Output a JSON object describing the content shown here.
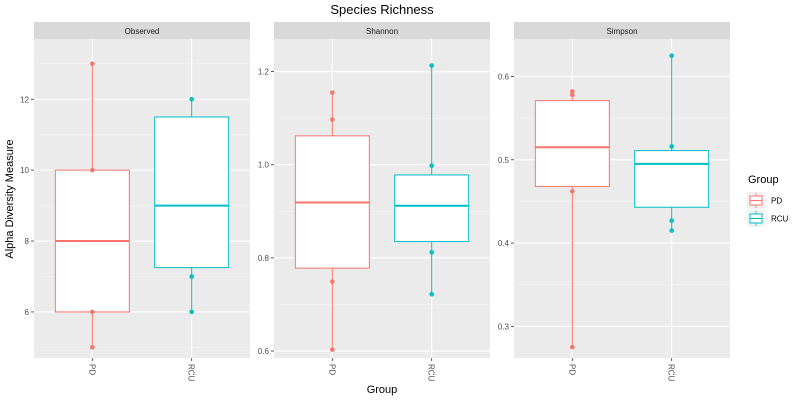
{
  "chart_data": {
    "type": "box",
    "title": "Species Richness",
    "xlabel": "Group",
    "ylabel": "Alpha Diversity Measure",
    "categories": [
      "PD",
      "RCU"
    ],
    "colors": {
      "PD": "#F8766D",
      "RCU": "#00BFC4"
    },
    "legend": {
      "title": "Group",
      "position": "right",
      "entries": [
        "PD",
        "RCU"
      ]
    },
    "grid": true,
    "panels": [
      {
        "name": "Observed",
        "ylim": [
          4.7,
          13.7
        ],
        "yticks": [
          6,
          8,
          10,
          12
        ],
        "groups": [
          {
            "name": "PD",
            "q1": 6,
            "median": 8,
            "q3": 10,
            "whisker_low": 5,
            "whisker_high": 13,
            "points": [
              13,
              10,
              6,
              5
            ]
          },
          {
            "name": "RCU",
            "q1": 7.25,
            "median": 9,
            "q3": 11.5,
            "whisker_low": 6,
            "whisker_high": 12,
            "points": [
              12,
              7,
              6
            ]
          }
        ]
      },
      {
        "name": "Shannon",
        "ylim": [
          0.585,
          1.27
        ],
        "yticks": [
          0.6,
          0.8,
          1.0,
          1.2
        ],
        "groups": [
          {
            "name": "PD",
            "q1": 0.778,
            "median": 0.919,
            "q3": 1.062,
            "whisker_low": 0.603,
            "whisker_high": 1.155,
            "points": [
              1.155,
              1.097,
              0.749,
              0.603
            ]
          },
          {
            "name": "RCU",
            "q1": 0.835,
            "median": 0.912,
            "q3": 0.978,
            "whisker_low": 0.722,
            "whisker_high": 1.213,
            "points": [
              1.213,
              0.998,
              0.812,
              0.722
            ]
          }
        ]
      },
      {
        "name": "Simpson",
        "ylim": [
          0.262,
          0.645
        ],
        "yticks": [
          0.3,
          0.4,
          0.5,
          0.6
        ],
        "groups": [
          {
            "name": "PD",
            "q1": 0.468,
            "median": 0.515,
            "q3": 0.571,
            "whisker_low": 0.275,
            "whisker_high": 0.582,
            "points": [
              0.582,
              0.578,
              0.462,
              0.275
            ]
          },
          {
            "name": "RCU",
            "q1": 0.443,
            "median": 0.495,
            "q3": 0.511,
            "whisker_low": 0.415,
            "whisker_high": 0.625,
            "points": [
              0.625,
              0.516,
              0.427,
              0.415
            ]
          }
        ]
      }
    ]
  }
}
